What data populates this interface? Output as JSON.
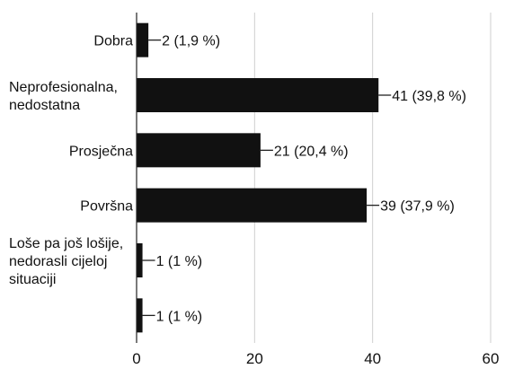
{
  "chart_data": {
    "type": "bar",
    "orientation": "horizontal",
    "categories": [
      [
        "Dobra"
      ],
      [
        "Neprofesionalna,",
        "nedostatna"
      ],
      [
        "Prosječna"
      ],
      [
        "Površna"
      ],
      [
        "Loše pa još lošije,",
        "nedorasli cijeloj",
        "situaciji"
      ],
      [
        ""
      ]
    ],
    "values": [
      2,
      41,
      21,
      39,
      1,
      1
    ],
    "data_labels": [
      "2 (1,9 %)",
      "41 (39,8 %)",
      "21 (20,4 %)",
      "39 (37,9 %)",
      "1 (1 %)",
      "1 (1 %)"
    ],
    "xlim": [
      0,
      60
    ],
    "xticks": [
      "0",
      "20",
      "40",
      "60"
    ],
    "grid": true,
    "bar_color": "#111111"
  }
}
